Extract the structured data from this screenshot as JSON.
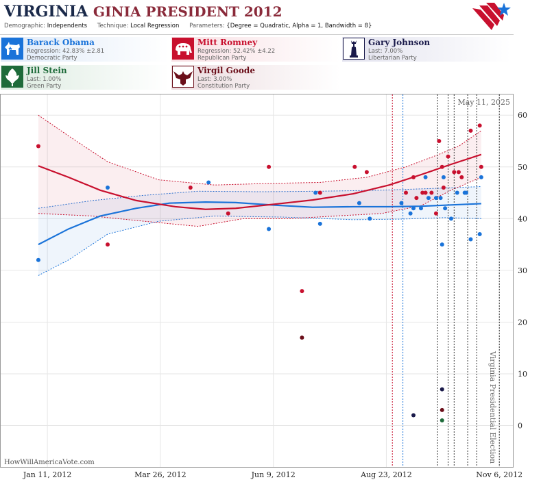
{
  "header": {
    "title_main": "VIRGINIA",
    "title_sub": "GINIA PRESIDENT 2012",
    "params": [
      {
        "key": "Demographic:",
        "value": "Independents"
      },
      {
        "key": "Technique:",
        "value": "Local Regression"
      },
      {
        "key": "Parameters:",
        "value": "{Degree = Quadratic, Alpha = 1, Bandwidth = 8}"
      }
    ]
  },
  "candidates": {
    "obama": {
      "name": "Barack Obama",
      "stat": "Regression: 42.83% ±2.81",
      "party": "Democratic Party",
      "color": "#1a73d9",
      "icon": "donkey-icon"
    },
    "romney": {
      "name": "Mitt Romney",
      "stat": "Regression: 52.42% ±4.22",
      "party": "Republican Party",
      "color": "#c8102e",
      "icon": "elephant-icon"
    },
    "johnson": {
      "name": "Gary Johnson",
      "stat": "Last: 7.00%",
      "party": "Libertarian Party",
      "color": "#1a1a4a",
      "icon": "statue-of-liberty-icon"
    },
    "stein": {
      "name": "Jill Stein",
      "stat": "Last: 1.00%",
      "party": "Green Party",
      "color": "#1e6b3a",
      "icon": "leaf-icon"
    },
    "goode": {
      "name": "Virgil Goode",
      "stat": "Last: 3.00%",
      "party": "Constitution Party",
      "color": "#6b0f1a",
      "icon": "eagle-icon"
    }
  },
  "chart": {
    "date_label": "May 11, 2025",
    "event_label": "Virginia Presidential Election",
    "watermark": "HowWillAmericaVote.com"
  },
  "chart_data": {
    "type": "scatter",
    "x_tick_labels": [
      "Jan 11, 2012",
      "Mar 26, 2012",
      "Jun 9, 2012",
      "Aug 23, 2012",
      "Nov 6, 2012"
    ],
    "xlim": [
      "2011-12-11",
      "2012-11-15"
    ],
    "ylim": [
      -8,
      64
    ],
    "y_ticks": [
      0,
      10,
      20,
      30,
      40,
      50,
      60
    ],
    "grid": true,
    "series": [
      {
        "name": "Barack Obama",
        "color": "#1a73d9",
        "points": [
          [
            "2012-01-05",
            32
          ],
          [
            "2012-02-20",
            46
          ],
          [
            "2012-04-27",
            47
          ],
          [
            "2012-06-06",
            38
          ],
          [
            "2012-07-07",
            45
          ],
          [
            "2012-07-10",
            39
          ],
          [
            "2012-08-05",
            43
          ],
          [
            "2012-08-12",
            40
          ],
          [
            "2012-09-02",
            43
          ],
          [
            "2012-09-08",
            41
          ],
          [
            "2012-09-10",
            42
          ],
          [
            "2012-09-15",
            42
          ],
          [
            "2012-09-18",
            48
          ],
          [
            "2012-09-20",
            44
          ],
          [
            "2012-09-25",
            44
          ],
          [
            "2012-09-28",
            44
          ],
          [
            "2012-09-29",
            35
          ],
          [
            "2012-09-30",
            48
          ],
          [
            "2012-10-01",
            42
          ],
          [
            "2012-10-05",
            40
          ],
          [
            "2012-10-09",
            45
          ],
          [
            "2012-10-14",
            45
          ],
          [
            "2012-10-15",
            45
          ],
          [
            "2012-10-18",
            36
          ],
          [
            "2012-10-24",
            37
          ],
          [
            "2012-10-25",
            48
          ]
        ],
        "trend": [
          [
            "2012-01-05",
            35
          ],
          [
            "2012-01-25",
            38
          ],
          [
            "2012-02-15",
            40.5
          ],
          [
            "2012-03-10",
            42
          ],
          [
            "2012-04-01",
            43
          ],
          [
            "2012-04-25",
            43.2
          ],
          [
            "2012-05-15",
            43.1
          ],
          [
            "2012-06-10",
            42.6
          ],
          [
            "2012-07-05",
            42.2
          ],
          [
            "2012-08-01",
            42.3
          ],
          [
            "2012-08-25",
            42.3
          ],
          [
            "2012-09-15",
            42.4
          ],
          [
            "2012-10-01",
            42.6
          ],
          [
            "2012-10-25",
            42.9
          ]
        ],
        "band_upper": [
          [
            "2012-01-05",
            42
          ],
          [
            "2012-02-10",
            43.5
          ],
          [
            "2012-03-15",
            44.5
          ],
          [
            "2012-04-20",
            45.3
          ],
          [
            "2012-06-01",
            45.2
          ],
          [
            "2012-07-10",
            45.3
          ],
          [
            "2012-08-20",
            45.5
          ],
          [
            "2012-09-20",
            45.8
          ],
          [
            "2012-10-25",
            46.2
          ]
        ],
        "band_lower": [
          [
            "2012-01-05",
            29
          ],
          [
            "2012-01-25",
            32
          ],
          [
            "2012-02-20",
            37
          ],
          [
            "2012-03-25",
            39.5
          ],
          [
            "2012-05-01",
            40.5
          ],
          [
            "2012-06-15",
            40.3
          ],
          [
            "2012-08-01",
            39.8
          ],
          [
            "2012-09-01",
            39.9
          ],
          [
            "2012-10-01",
            40.2
          ],
          [
            "2012-10-25",
            40
          ]
        ]
      },
      {
        "name": "Mitt Romney",
        "color": "#c8102e",
        "points": [
          [
            "2012-01-05",
            54
          ],
          [
            "2012-02-20",
            35
          ],
          [
            "2012-04-15",
            46
          ],
          [
            "2012-05-10",
            41
          ],
          [
            "2012-06-06",
            50
          ],
          [
            "2012-06-28",
            26
          ],
          [
            "2012-07-10",
            45
          ],
          [
            "2012-08-02",
            50
          ],
          [
            "2012-08-10",
            49
          ],
          [
            "2012-09-05",
            45
          ],
          [
            "2012-09-10",
            48
          ],
          [
            "2012-09-12",
            44
          ],
          [
            "2012-09-16",
            45
          ],
          [
            "2012-09-18",
            45
          ],
          [
            "2012-09-22",
            45
          ],
          [
            "2012-09-25",
            41
          ],
          [
            "2012-09-27",
            55
          ],
          [
            "2012-09-29",
            50
          ],
          [
            "2012-09-30",
            46
          ],
          [
            "2012-10-03",
            52
          ],
          [
            "2012-10-07",
            49
          ],
          [
            "2012-10-10",
            49
          ],
          [
            "2012-10-12",
            48
          ],
          [
            "2012-10-18",
            57
          ],
          [
            "2012-10-24",
            58
          ],
          [
            "2012-10-25",
            50
          ]
        ],
        "trend": [
          [
            "2012-01-05",
            50.2
          ],
          [
            "2012-01-25",
            48
          ],
          [
            "2012-02-15",
            45.5
          ],
          [
            "2012-03-10",
            43.5
          ],
          [
            "2012-04-05",
            42.3
          ],
          [
            "2012-04-25",
            41.8
          ],
          [
            "2012-05-15",
            42
          ],
          [
            "2012-06-10",
            42.8
          ],
          [
            "2012-07-05",
            43.6
          ],
          [
            "2012-08-01",
            44.8
          ],
          [
            "2012-08-25",
            46.5
          ],
          [
            "2012-09-15",
            48.5
          ],
          [
            "2012-10-05",
            50.5
          ],
          [
            "2012-10-25",
            52.4
          ]
        ],
        "band_upper": [
          [
            "2012-01-05",
            60
          ],
          [
            "2012-01-25",
            56
          ],
          [
            "2012-02-20",
            51
          ],
          [
            "2012-03-25",
            47.5
          ],
          [
            "2012-05-01",
            46.5
          ],
          [
            "2012-06-05",
            46.8
          ],
          [
            "2012-07-10",
            47
          ],
          [
            "2012-08-10",
            48
          ],
          [
            "2012-09-05",
            50
          ],
          [
            "2012-09-25",
            52.2
          ],
          [
            "2012-10-10",
            54
          ],
          [
            "2012-10-25",
            57
          ]
        ],
        "band_lower": [
          [
            "2012-01-05",
            41
          ],
          [
            "2012-02-10",
            40.5
          ],
          [
            "2012-03-15",
            39.5
          ],
          [
            "2012-04-20",
            38.5
          ],
          [
            "2012-05-20",
            40
          ],
          [
            "2012-06-20",
            40
          ],
          [
            "2012-07-20",
            40.5
          ],
          [
            "2012-08-20",
            41
          ],
          [
            "2012-09-15",
            42.5
          ],
          [
            "2012-10-05",
            45.5
          ],
          [
            "2012-10-25",
            48
          ]
        ]
      },
      {
        "name": "Gary Johnson",
        "color": "#1a1a4a",
        "points": [
          [
            "2012-09-10",
            2
          ],
          [
            "2012-09-29",
            7
          ]
        ]
      },
      {
        "name": "Jill Stein",
        "color": "#1e6b3a",
        "points": [
          [
            "2012-09-29",
            1
          ]
        ]
      },
      {
        "name": "Virgil Goode",
        "color": "#6b0f1a",
        "points": [
          [
            "2012-06-28",
            17
          ],
          [
            "2012-09-29",
            3
          ]
        ]
      }
    ],
    "vlines": [
      {
        "date": "2012-08-27",
        "color": "#c8102e"
      },
      {
        "date": "2012-09-03",
        "color": "#1a73d9"
      },
      {
        "date": "2012-09-26",
        "color": "#333333"
      },
      {
        "date": "2012-10-03",
        "color": "#333333"
      },
      {
        "date": "2012-10-07",
        "color": "#333333"
      },
      {
        "date": "2012-10-16",
        "color": "#333333"
      },
      {
        "date": "2012-10-22",
        "color": "#333333"
      },
      {
        "date": "2012-11-06",
        "color": "#333333"
      }
    ]
  }
}
